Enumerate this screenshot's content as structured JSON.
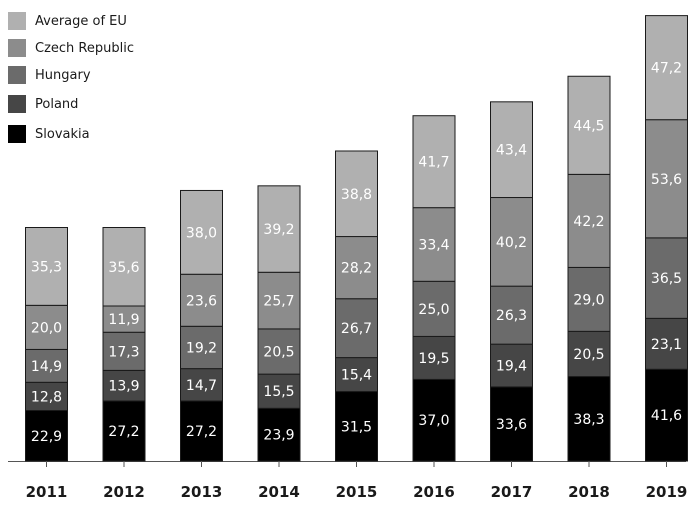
{
  "chart_data": {
    "type": "bar",
    "stacked": true,
    "categories": [
      "2011",
      "2012",
      "2013",
      "2014",
      "2015",
      "2016",
      "2017",
      "2018",
      "2019"
    ],
    "series": [
      {
        "name": "Slovakia",
        "color": "#000000",
        "values": [
          22.9,
          27.2,
          27.2,
          23.9,
          31.5,
          37.0,
          33.6,
          38.3,
          41.6
        ],
        "labels": [
          "22,9",
          "27,2",
          "27,2",
          "23,9",
          "31,5",
          "37,0",
          "33,6",
          "38,3",
          "41,6"
        ]
      },
      {
        "name": "Poland",
        "color": "#464646",
        "values": [
          12.8,
          13.9,
          14.7,
          15.5,
          15.4,
          19.5,
          19.4,
          20.5,
          23.1
        ],
        "labels": [
          "12,8",
          "13,9",
          "14,7",
          "15,5",
          "15,4",
          "19,5",
          "19,4",
          "20,5",
          "23,1"
        ]
      },
      {
        "name": "Hungary",
        "color": "#6b6b6b",
        "values": [
          14.9,
          17.3,
          19.2,
          20.5,
          26.7,
          25.0,
          26.3,
          29.0,
          36.5
        ],
        "labels": [
          "14,9",
          "17,3",
          "19,2",
          "20,5",
          "26,7",
          "25,0",
          "26,3",
          "29,0",
          "36,5"
        ]
      },
      {
        "name": "Czech Republic",
        "color": "#8c8c8c",
        "values": [
          20.0,
          11.9,
          23.6,
          25.7,
          28.2,
          33.4,
          40.2,
          42.2,
          53.6
        ],
        "labels": [
          "20,0",
          "11,9",
          "23,6",
          "25,7",
          "28,2",
          "33,4",
          "40,2",
          "42,2",
          "53,6"
        ]
      },
      {
        "name": "Average of EU",
        "color": "#b0b0b0",
        "values": [
          35.3,
          35.6,
          38.0,
          39.2,
          38.8,
          41.7,
          43.4,
          44.5,
          47.2
        ],
        "labels": [
          "35,3",
          "35,6",
          "38,0",
          "39,2",
          "38,8",
          "41,7",
          "43,4",
          "44,5",
          "47,2"
        ]
      }
    ],
    "legend_order": [
      "Average of EU",
      "Czech Republic",
      "Hungary",
      "Poland",
      "Slovakia"
    ],
    "legend_position": "top-left",
    "ylim": [
      0,
      205
    ],
    "grid": false,
    "title": "",
    "xlabel": "",
    "ylabel": ""
  }
}
